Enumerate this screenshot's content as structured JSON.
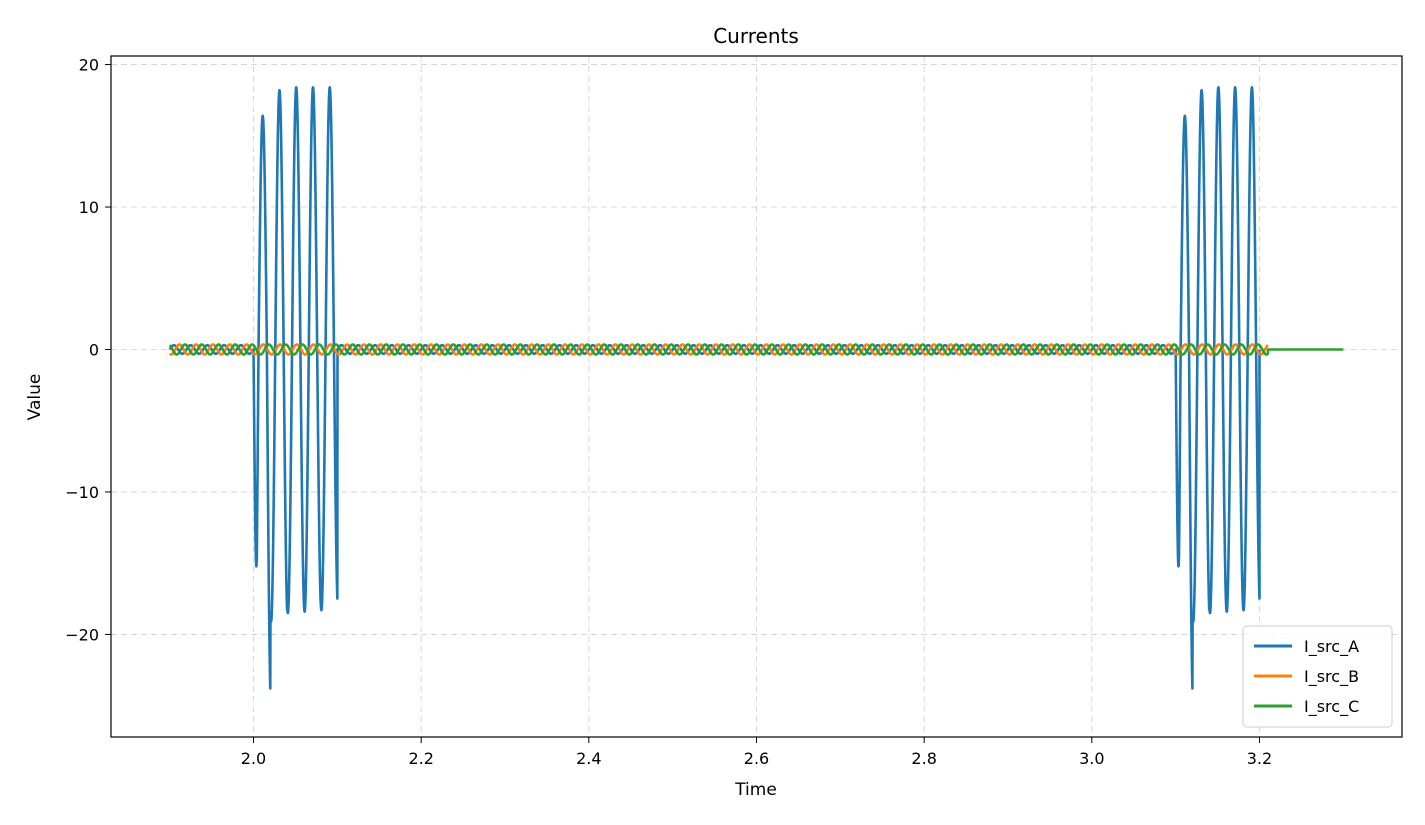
{
  "chart_data": {
    "type": "line",
    "title": "Currents",
    "xlabel": "Time",
    "ylabel": "Value",
    "xlim": [
      1.83,
      3.37
    ],
    "ylim": [
      -27.2,
      20.6
    ],
    "xticks": [
      2.0,
      2.2,
      2.4,
      2.6,
      2.8,
      3.0,
      3.2
    ],
    "xtick_labels": [
      "2.0",
      "2.2",
      "2.4",
      "2.6",
      "2.8",
      "3.0",
      "3.2"
    ],
    "yticks": [
      20,
      10,
      0,
      -10,
      -20
    ],
    "ytick_labels": [
      "20",
      "10",
      "0",
      "−10",
      "−20"
    ],
    "grid": true,
    "legend_position": "bottom-right",
    "series": [
      {
        "name": "I_src_A",
        "color": "#1f77b4",
        "description": "50 Hz sinusoid, amplitude 0.3 from 1.9 to 3.2 s; fault bursts 2.0-2.1 s and 3.1-3.2 s with peaks up to 18.4 and troughs down to -24.9; zero after 3.2 s",
        "baseline_amplitude": 0.3,
        "frequency_hz": 50,
        "bursts": [
          {
            "start": 2.0,
            "end": 2.1,
            "peaks": [
              16.4,
              18.2,
              18.4,
              18.4,
              18.4
            ],
            "troughs": [
              -24.9,
              -19.1,
              -18.5,
              -18.4,
              -18.3
            ]
          },
          {
            "start": 3.1,
            "end": 3.2,
            "peaks": [
              16.4,
              18.2,
              18.4,
              18.4,
              18.4
            ],
            "troughs": [
              -24.9,
              -19.1,
              -18.5,
              -18.4,
              -18.3
            ]
          }
        ],
        "end": 3.2
      },
      {
        "name": "I_src_B",
        "color": "#ff7f0e",
        "baseline_amplitude": 0.35,
        "frequency_hz": 50,
        "phase_deg": -120,
        "start": 1.9,
        "end": 3.21
      },
      {
        "name": "I_src_C",
        "color": "#2ca02c",
        "baseline_amplitude": 0.35,
        "frequency_hz": 50,
        "phase_deg": 120,
        "start": 1.9,
        "end": 3.3,
        "zero_after": 3.21
      }
    ]
  }
}
